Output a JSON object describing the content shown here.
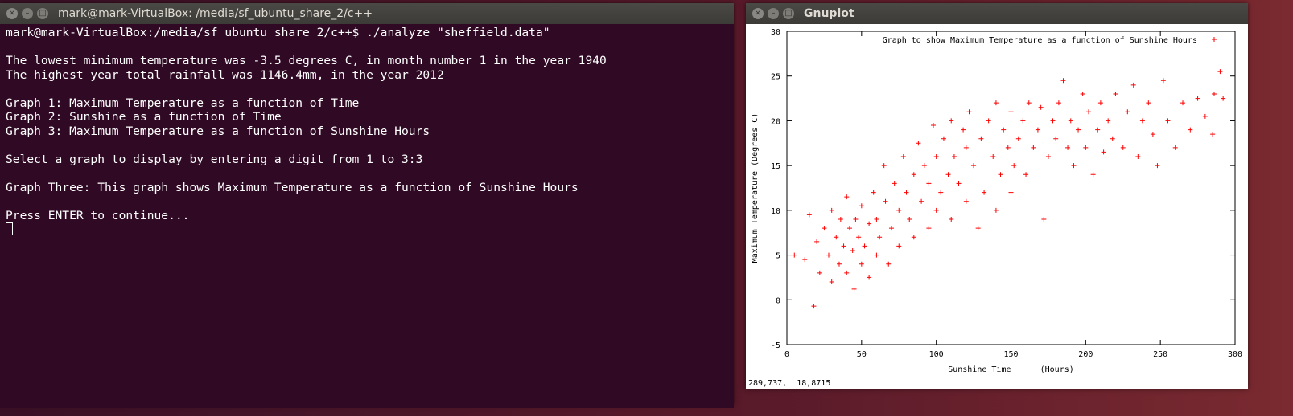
{
  "terminal": {
    "title": "mark@mark-VirtualBox: /media/sf_ubuntu_share_2/c++",
    "blocks": [
      [
        "mark@mark-VirtualBox:/media/sf_ubuntu_share_2/c++$ ./analyze \"sheffield.data\""
      ],
      [
        "The lowest minimum temperature was -3.5 degrees C, in month number 1 in the year 1940",
        "The highest year total rainfall was 1146.4mm, in the year 2012"
      ],
      [
        "Graph 1: Maximum Temperature as a function of Time",
        "Graph 2: Sunshine as a function of Time",
        "Graph 3: Maximum Temperature as a function of Sunshine Hours"
      ],
      [
        "Select a graph to display by entering a digit from 1 to 3:3"
      ],
      [
        "Graph Three: This graph shows Maximum Temperature as a function of Sunshine Hours"
      ],
      [
        "Press ENTER to continue..."
      ]
    ]
  },
  "gnuplot": {
    "title": "Gnuplot",
    "status": "289,737,  18,8715"
  },
  "chart_data": {
    "type": "scatter",
    "x_label": "Sunshine Time      (Hours)",
    "y_label": "Maximum Temperature (Degrees C)",
    "xlim": [
      0,
      300
    ],
    "ylim": [
      -5,
      30
    ],
    "xticks": [
      0,
      50,
      100,
      150,
      200,
      250,
      300
    ],
    "yticks": [
      -5,
      0,
      5,
      10,
      15,
      20,
      25,
      30
    ],
    "series": [
      {
        "name": "Graph to show Maximum Temperature as a function of Sunshine Hours",
        "color": "#ff0000",
        "x": [
          5,
          12,
          15,
          18,
          20,
          22,
          25,
          28,
          30,
          30,
          33,
          35,
          36,
          38,
          40,
          40,
          42,
          44,
          45,
          46,
          48,
          50,
          50,
          52,
          55,
          55,
          58,
          60,
          60,
          62,
          65,
          66,
          68,
          70,
          72,
          75,
          75,
          78,
          80,
          82,
          85,
          85,
          88,
          90,
          92,
          95,
          95,
          98,
          100,
          100,
          103,
          105,
          108,
          110,
          110,
          112,
          115,
          118,
          120,
          120,
          122,
          125,
          128,
          130,
          132,
          135,
          138,
          140,
          140,
          143,
          145,
          148,
          150,
          150,
          152,
          155,
          158,
          160,
          162,
          165,
          168,
          170,
          172,
          175,
          178,
          180,
          182,
          185,
          188,
          190,
          192,
          195,
          198,
          200,
          202,
          205,
          208,
          210,
          212,
          215,
          218,
          220,
          225,
          228,
          232,
          235,
          238,
          242,
          245,
          248,
          252,
          255,
          260,
          265,
          270,
          275,
          280,
          285,
          286,
          290,
          292
        ],
        "values": [
          5,
          4.5,
          9.5,
          -0.7,
          6.5,
          3,
          8,
          5,
          10,
          2,
          7,
          4,
          9,
          6,
          11.5,
          3,
          8,
          5.5,
          1.2,
          9,
          7,
          10.5,
          4,
          6,
          8.5,
          2.5,
          12,
          5,
          9,
          7,
          15,
          11,
          4,
          8,
          13,
          10,
          6,
          16,
          12,
          9,
          14,
          7,
          17.5,
          11,
          15,
          8,
          13,
          19.5,
          10,
          16,
          12,
          18,
          14,
          9,
          20,
          16,
          13,
          19,
          11,
          17,
          21,
          15,
          8,
          18,
          12,
          20,
          16,
          22,
          10,
          14,
          19,
          17,
          21,
          12,
          15,
          18,
          20,
          14,
          22,
          17,
          19,
          21.5,
          9,
          16,
          20,
          18,
          22,
          24.5,
          17,
          20,
          15,
          19,
          23,
          17,
          21,
          14,
          19,
          22,
          16.5,
          20,
          18,
          23,
          17,
          21,
          24,
          16,
          20,
          22,
          18.5,
          15,
          24.5,
          20,
          17,
          22,
          19,
          22.5,
          20.5,
          18.5,
          23,
          25.5,
          22.5
        ]
      }
    ]
  }
}
